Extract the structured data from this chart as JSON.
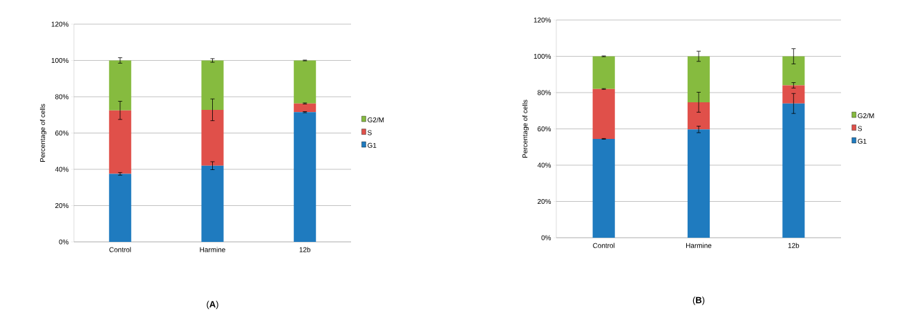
{
  "chart_data": [
    {
      "type": "bar",
      "stacked": true,
      "categories": [
        "Control",
        "Harmine",
        "12b"
      ],
      "ylabel": "Percentage of cells",
      "ylim": [
        0,
        120
      ],
      "yticks": [
        {
          "value": 0,
          "label": "0%"
        },
        {
          "value": 20,
          "label": "20%"
        },
        {
          "value": 40,
          "label": "40%"
        },
        {
          "value": 60,
          "label": "60%"
        },
        {
          "value": 80,
          "label": "80%"
        },
        {
          "value": 100,
          "label": "100%"
        },
        {
          "value": 120,
          "label": "120%"
        }
      ],
      "grid": "y",
      "legend": "right",
      "annotations": [
        "(**A**)"
      ],
      "series": [
        {
          "name": "G1",
          "color": "#1f7bbf",
          "values": [
            37.5,
            42,
            71.5
          ],
          "errors": [
            0.7,
            2.2,
            0.3
          ]
        },
        {
          "name": "S",
          "color": "#e0504a",
          "values": [
            35,
            30.8,
            4.8
          ],
          "errors": [
            5,
            6,
            0.3
          ]
        },
        {
          "name": "G2/M",
          "color": "#86bb3f",
          "values": [
            27.5,
            27.2,
            23.7
          ],
          "errors": [
            1.5,
            1,
            0.2
          ]
        }
      ]
    },
    {
      "type": "bar",
      "stacked": true,
      "categories": [
        "Control",
        "Harmine",
        "12b"
      ],
      "ylabel": "Percentage of cells",
      "ylim": [
        0,
        120
      ],
      "yticks": [
        {
          "value": 0,
          "label": "0%"
        },
        {
          "value": 20,
          "label": "20%"
        },
        {
          "value": 40,
          "label": "40%"
        },
        {
          "value": 60,
          "label": "60%"
        },
        {
          "value": 80,
          "label": "80%"
        },
        {
          "value": 100,
          "label": "100%"
        },
        {
          "value": 120,
          "label": "120%"
        }
      ],
      "grid": "y",
      "legend": "right",
      "annotations": [
        "(**B**)"
      ],
      "series": [
        {
          "name": "G1",
          "color": "#1f7bbf",
          "values": [
            54.5,
            59.7,
            74
          ],
          "errors": [
            0.2,
            1.8,
            5.5
          ]
        },
        {
          "name": "S",
          "color": "#e0504a",
          "values": [
            27.5,
            15,
            10
          ],
          "errors": [
            0.2,
            5.5,
            1.5
          ]
        },
        {
          "name": "G2/M",
          "color": "#86bb3f",
          "values": [
            18,
            25.3,
            16
          ],
          "errors": [
            0.2,
            2.8,
            4.2
          ]
        }
      ]
    }
  ]
}
